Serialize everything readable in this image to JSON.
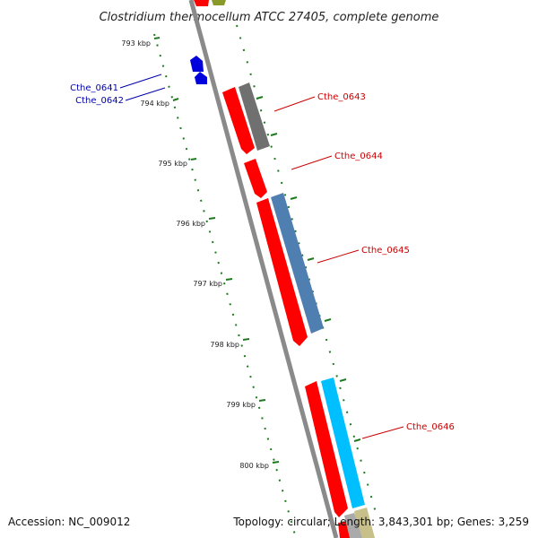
{
  "title": "Clostridium thermocellum ATCC 27405, complete genome",
  "accession": "Accession: NC_009012",
  "summary": "Topology: circular; Length: 3,843,301 bp; Genes: 3,259",
  "colors": {
    "backbone": "#8a8a8a",
    "tick": "#1f7a1f",
    "red_gene": "#ff0000",
    "gray_gene": "#707070",
    "steelblue_gene": "#4f7fb0",
    "cyan_gene": "#00bfff",
    "blue_gene": "#0000dd",
    "label_red": "#cc0000",
    "label_blue": "#0000aa",
    "olive_gene": "#8a9a2a",
    "khaki_gene": "#c8c08a"
  },
  "ticks": [
    "793 kbp",
    "794 kbp",
    "795 kbp",
    "796 kbp",
    "797 kbp",
    "798 kbp",
    "799 kbp",
    "800 kbp"
  ],
  "genes": [
    {
      "label": "Cthe_0641",
      "strand": "left",
      "color": "blue"
    },
    {
      "label": "Cthe_0642",
      "strand": "left",
      "color": "blue"
    },
    {
      "label": "Cthe_0643",
      "strand": "right",
      "color": "gray"
    },
    {
      "label": "Cthe_0644",
      "strand": "right",
      "color": "red"
    },
    {
      "label": "Cthe_0645",
      "strand": "right",
      "color": "steelblue"
    },
    {
      "label": "Cthe_0646",
      "strand": "right",
      "color": "cyan"
    }
  ]
}
